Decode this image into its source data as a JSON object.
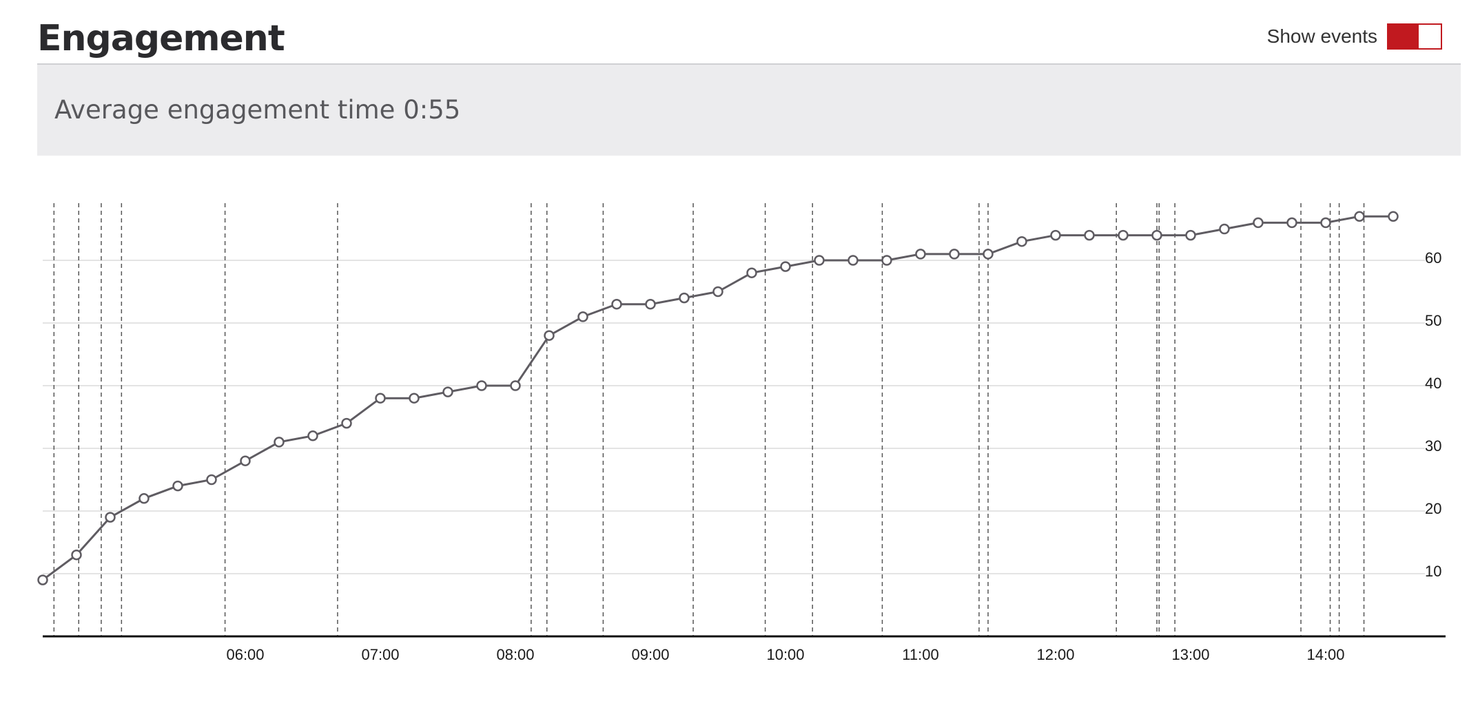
{
  "header": {
    "title": "Engagement",
    "toggle_label": "Show events",
    "toggle_on": true,
    "accent_color": "#c1191f"
  },
  "summary": {
    "text": "Average engagement time 0:55"
  },
  "chart_data": {
    "type": "line",
    "title": "",
    "xlabel": "",
    "ylabel": "",
    "x_axis_format": "HH:MM",
    "xlim": [
      "04:30",
      "14:55"
    ],
    "ylim": [
      0,
      67
    ],
    "y_ticks": [
      10,
      20,
      30,
      40,
      50,
      60
    ],
    "x_ticks": [
      "06:00",
      "07:00",
      "08:00",
      "09:00",
      "10:00",
      "11:00",
      "12:00",
      "13:00",
      "14:00"
    ],
    "y_axis_position": "right",
    "grid": "horizontal",
    "line_color": "#5f5c62",
    "series": [
      {
        "x": [
          "04:30",
          "04:45",
          "05:00",
          "05:15",
          "05:30",
          "05:45",
          "06:00",
          "06:15",
          "06:30",
          "06:45",
          "07:00",
          "07:15",
          "07:30",
          "07:45",
          "08:00",
          "08:15",
          "08:30",
          "08:45",
          "09:00",
          "09:15",
          "09:30",
          "09:45",
          "10:00",
          "10:15",
          "10:30",
          "10:45",
          "11:00",
          "11:15",
          "11:30",
          "11:45",
          "12:00",
          "12:15",
          "12:30",
          "12:45",
          "13:00",
          "13:15",
          "13:30",
          "13:45",
          "14:00",
          "14:15",
          "14:30"
        ],
        "values": [
          9,
          13,
          19,
          22,
          24,
          25,
          28,
          31,
          32,
          34,
          38,
          38,
          39,
          40,
          40,
          48,
          51,
          53,
          53,
          54,
          55,
          58,
          59,
          60,
          60,
          60,
          61,
          61,
          61,
          63,
          64,
          64,
          64,
          64,
          64,
          65,
          66,
          66,
          66,
          67,
          67
        ]
      }
    ],
    "events": [
      "04:35",
      "04:46",
      "04:56",
      "05:05",
      "05:51",
      "06:41",
      "08:07",
      "08:14",
      "08:39",
      "09:19",
      "09:51",
      "10:12",
      "10:43",
      "11:26",
      "11:30",
      "12:27",
      "12:45",
      "12:46",
      "12:53",
      "13:49",
      "14:02",
      "14:06",
      "14:17"
    ]
  }
}
